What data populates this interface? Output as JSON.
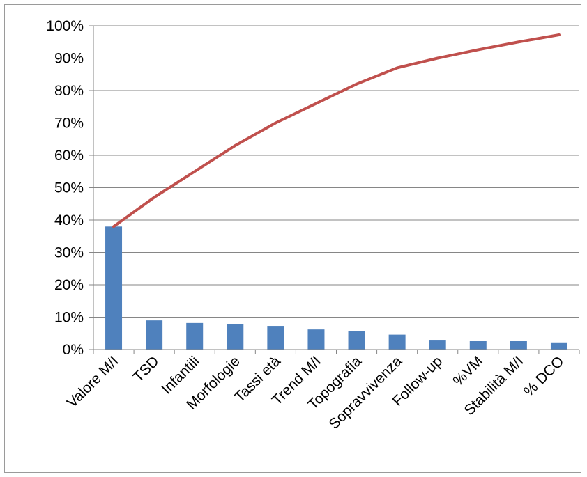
{
  "chart_data": {
    "type": "bar",
    "title": "",
    "xlabel": "",
    "ylabel": "",
    "categories": [
      "Valore M/I",
      "TSD",
      "Infantili",
      "Morfologie",
      "Tassi età",
      "Trend M/I",
      "Topografia",
      "Sopravvivenza",
      "Follow-up",
      "%VM",
      "Stabilità M/I",
      "% DCO"
    ],
    "series": [
      {
        "type": "bar",
        "values": [
          38,
          9,
          8.2,
          7.8,
          7.3,
          6.2,
          5.8,
          4.6,
          3,
          2.6,
          2.6,
          2.2
        ]
      },
      {
        "type": "line",
        "values": [
          38,
          47,
          55,
          63,
          70,
          76,
          82,
          87,
          90,
          92.6,
          95,
          97.2
        ]
      }
    ],
    "ylim": [
      0,
      100
    ],
    "yticks": [
      "0%",
      "10%",
      "20%",
      "30%",
      "40%",
      "50%",
      "60%",
      "70%",
      "80%",
      "90%",
      "100%"
    ],
    "grid": true,
    "legend": "none",
    "colors": {
      "bar": "#4f81bd",
      "line": "#c0504d",
      "grid": "#868686",
      "axis": "#868686"
    }
  }
}
